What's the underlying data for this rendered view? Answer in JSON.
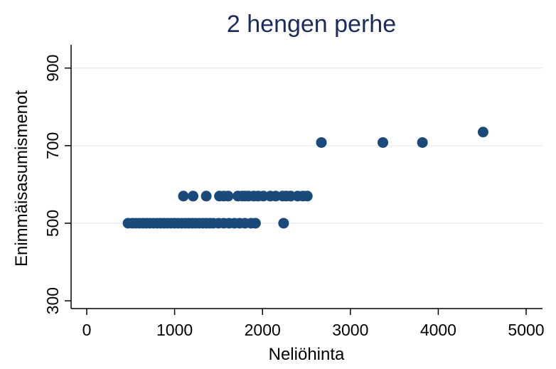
{
  "chart_data": {
    "type": "scatter",
    "title": "2 hengen perhe",
    "xlabel": "Neliöhinta",
    "ylabel": "Enimmäisasumismenot",
    "xlim": [
      0,
      5000
    ],
    "ylim": [
      280,
      960
    ],
    "xticks": [
      0,
      1000,
      2000,
      3000,
      4000,
      5000
    ],
    "yticks": [
      300,
      500,
      700,
      900
    ],
    "grid": "horizontal",
    "marker_color": "#1a4a7a",
    "series": [
      {
        "points": [
          [
            470,
            500
          ],
          [
            520,
            500
          ],
          [
            560,
            500
          ],
          [
            600,
            500
          ],
          [
            640,
            500
          ],
          [
            680,
            500
          ],
          [
            720,
            500
          ],
          [
            760,
            500
          ],
          [
            800,
            500
          ],
          [
            840,
            500
          ],
          [
            880,
            500
          ],
          [
            920,
            500
          ],
          [
            960,
            500
          ],
          [
            1000,
            500
          ],
          [
            1040,
            500
          ],
          [
            1080,
            500
          ],
          [
            1120,
            500
          ],
          [
            1160,
            500
          ],
          [
            1200,
            500
          ],
          [
            1240,
            500
          ],
          [
            1280,
            500
          ],
          [
            1320,
            500
          ],
          [
            1360,
            500
          ],
          [
            1400,
            500
          ],
          [
            1440,
            500
          ],
          [
            1500,
            500
          ],
          [
            1560,
            500
          ],
          [
            1620,
            500
          ],
          [
            1680,
            500
          ],
          [
            1740,
            500
          ],
          [
            1800,
            500
          ],
          [
            1870,
            500
          ],
          [
            1920,
            500
          ],
          [
            2240,
            500
          ],
          [
            1100,
            570
          ],
          [
            1210,
            570
          ],
          [
            1360,
            570
          ],
          [
            1510,
            570
          ],
          [
            1560,
            570
          ],
          [
            1610,
            570
          ],
          [
            1720,
            570
          ],
          [
            1770,
            570
          ],
          [
            1800,
            570
          ],
          [
            1840,
            570
          ],
          [
            1900,
            570
          ],
          [
            1950,
            570
          ],
          [
            2010,
            570
          ],
          [
            2090,
            570
          ],
          [
            2150,
            570
          ],
          [
            2230,
            570
          ],
          [
            2270,
            570
          ],
          [
            2320,
            570
          ],
          [
            2400,
            570
          ],
          [
            2460,
            570
          ],
          [
            2510,
            570
          ],
          [
            2670,
            708
          ],
          [
            3370,
            708
          ],
          [
            3820,
            708
          ],
          [
            4510,
            735
          ]
        ]
      }
    ]
  }
}
